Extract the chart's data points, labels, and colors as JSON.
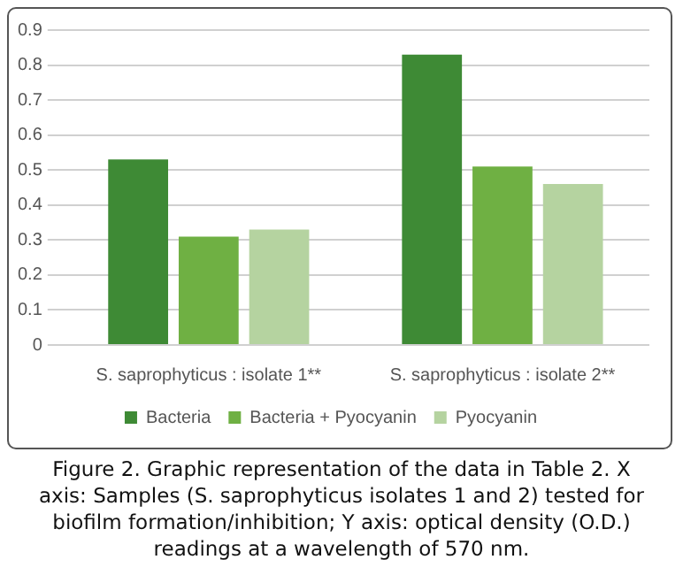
{
  "chart_data": {
    "type": "bar",
    "categories": [
      "S. saprophyticus : isolate 1**",
      "S. saprophyticus : isolate 2**"
    ],
    "series": [
      {
        "name": "Bacteria",
        "color": "#3e8a35",
        "values": [
          0.53,
          0.83
        ]
      },
      {
        "name": "Bacteria + Pyocyanin",
        "color": "#6fb043",
        "values": [
          0.31,
          0.51
        ]
      },
      {
        "name": "Pyocyanin",
        "color": "#b5d3a0",
        "values": [
          0.33,
          0.46
        ]
      }
    ],
    "ylim": [
      0,
      0.9
    ],
    "yticks": [
      0,
      0.1,
      0.2,
      0.3,
      0.4,
      0.5,
      0.6,
      0.7,
      0.8,
      0.9
    ],
    "grid": "y",
    "legend": "bottom",
    "annotations": [
      "Figure 2. Graphic representation of the data in Table 2. X axis: Samples (S. saprophyticus isolates 1 and 2) tested for biofilm formation/inhibition; Y axis: optical density (O.D.) readings at a wavelength of 570 nm."
    ]
  }
}
